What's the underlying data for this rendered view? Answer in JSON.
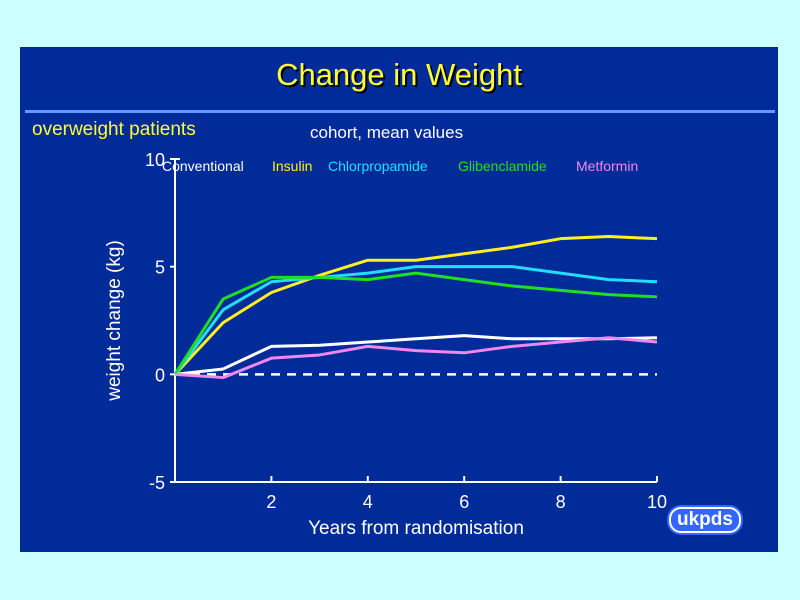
{
  "slide": {
    "title": "Change in Weight",
    "subtitle": "overweight patients",
    "note": "cohort, mean values",
    "logo": "ukpds"
  },
  "chart_data": {
    "type": "line",
    "xlabel": "Years from randomisation",
    "ylabel": "weight change (kg)",
    "xlim": [
      0,
      10
    ],
    "ylim": [
      -5,
      10
    ],
    "xticks": [
      2,
      4,
      6,
      8,
      10
    ],
    "yticks": [
      -5,
      0,
      5,
      10
    ],
    "x": [
      0,
      1,
      2,
      3,
      4,
      5,
      6,
      7,
      8,
      9,
      10
    ],
    "reference_line": {
      "y": 0,
      "style": "dashed"
    },
    "legend_placement": "top",
    "series": [
      {
        "name": "Conventional",
        "color": "#ffffff",
        "values": [
          0,
          0.25,
          1.3,
          1.35,
          1.5,
          1.65,
          1.8,
          1.65,
          1.65,
          1.65,
          1.7
        ]
      },
      {
        "name": "Insulin",
        "color": "#ffee22",
        "values": [
          0,
          2.4,
          3.8,
          4.6,
          5.3,
          5.3,
          5.6,
          5.9,
          6.3,
          6.4,
          6.3
        ]
      },
      {
        "name": "Chlorpropamide",
        "color": "#22ddff",
        "values": [
          0,
          3.0,
          4.3,
          4.5,
          4.7,
          5.0,
          5.0,
          5.0,
          4.7,
          4.4,
          4.3
        ]
      },
      {
        "name": "Glibenclamide",
        "color": "#22dd22",
        "values": [
          0,
          3.5,
          4.5,
          4.5,
          4.4,
          4.7,
          4.4,
          4.1,
          3.9,
          3.7,
          3.6
        ]
      },
      {
        "name": "Metformin",
        "color": "#ee88ee",
        "values": [
          0,
          -0.15,
          0.75,
          0.9,
          1.3,
          1.1,
          1.0,
          1.3,
          1.5,
          1.7,
          1.5
        ]
      }
    ]
  }
}
